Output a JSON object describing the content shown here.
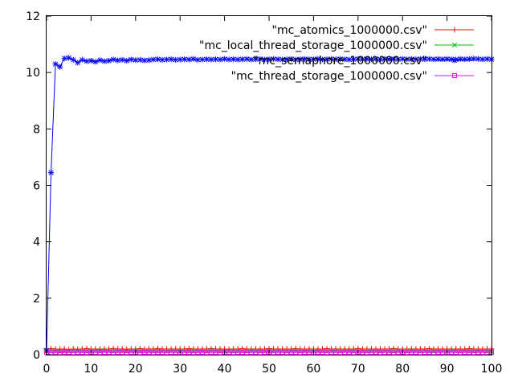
{
  "chart_data": {
    "type": "line",
    "xlim": [
      0,
      100
    ],
    "ylim": [
      0,
      12
    ],
    "xticks": [
      "0",
      "10",
      "20",
      "30",
      "40",
      "50",
      "60",
      "70",
      "80",
      "90",
      "100"
    ],
    "yticks": [
      "0",
      "2",
      "4",
      "6",
      "8",
      "10",
      "12"
    ],
    "legend_position": "top-right",
    "grid": false,
    "x": [
      0,
      1,
      2,
      3,
      4,
      5,
      6,
      7,
      8,
      9,
      10,
      11,
      12,
      13,
      14,
      15,
      16,
      17,
      18,
      19,
      20,
      21,
      22,
      23,
      24,
      25,
      26,
      27,
      28,
      29,
      30,
      31,
      32,
      33,
      34,
      35,
      36,
      37,
      38,
      39,
      40,
      41,
      42,
      43,
      44,
      45,
      46,
      47,
      48,
      49,
      50,
      51,
      52,
      53,
      54,
      55,
      56,
      57,
      58,
      59,
      60,
      61,
      62,
      63,
      64,
      65,
      66,
      67,
      68,
      69,
      70,
      71,
      72,
      73,
      74,
      75,
      76,
      77,
      78,
      79,
      80,
      81,
      82,
      83,
      84,
      85,
      86,
      87,
      88,
      89,
      90,
      91,
      92,
      93,
      94,
      95,
      96,
      97,
      98,
      99,
      100
    ],
    "series": [
      {
        "name": "\"mc_atomics_1000000.csv\"",
        "color": "#ff0000",
        "marker": "plus",
        "values": [
          0.2,
          0.21,
          0.2,
          0.19,
          0.2,
          0.18,
          0.2,
          0.19,
          0.2,
          0.21,
          0.2,
          0.2,
          0.19,
          0.2,
          0.2,
          0.21,
          0.2,
          0.2,
          0.19,
          0.2,
          0.2,
          0.21,
          0.2,
          0.2,
          0.2,
          0.21,
          0.2,
          0.2,
          0.2,
          0.2,
          0.2,
          0.2,
          0.21,
          0.2,
          0.2,
          0.2,
          0.2,
          0.21,
          0.2,
          0.2,
          0.2,
          0.19,
          0.2,
          0.2,
          0.21,
          0.2,
          0.2,
          0.2,
          0.2,
          0.2,
          0.21,
          0.2,
          0.2,
          0.2,
          0.2,
          0.2,
          0.21,
          0.2,
          0.2,
          0.2,
          0.2,
          0.2,
          0.2,
          0.21,
          0.2,
          0.2,
          0.2,
          0.2,
          0.2,
          0.2,
          0.21,
          0.2,
          0.2,
          0.2,
          0.2,
          0.2,
          0.2,
          0.2,
          0.21,
          0.2,
          0.2,
          0.2,
          0.2,
          0.2,
          0.2,
          0.2,
          0.21,
          0.2,
          0.2,
          0.2,
          0.2,
          0.2,
          0.2,
          0.2,
          0.2,
          0.21,
          0.2,
          0.2,
          0.2,
          0.2,
          0.2
        ]
      },
      {
        "name": "\"mc_local_thread_storage_1000000.csv\"",
        "color": "#00c000",
        "marker": "cross",
        "values": [
          0.12,
          0.13,
          0.12,
          0.12,
          0.11,
          0.12,
          0.12,
          0.13,
          0.12,
          0.12,
          0.12,
          0.12,
          0.12,
          0.13,
          0.12,
          0.12,
          0.12,
          0.12,
          0.12,
          0.12,
          0.13,
          0.12,
          0.12,
          0.12,
          0.12,
          0.12,
          0.12,
          0.12,
          0.13,
          0.12,
          0.12,
          0.12,
          0.12,
          0.12,
          0.12,
          0.12,
          0.12,
          0.13,
          0.12,
          0.12,
          0.12,
          0.12,
          0.12,
          0.12,
          0.12,
          0.12,
          0.13,
          0.12,
          0.12,
          0.12,
          0.12,
          0.12,
          0.12,
          0.12,
          0.12,
          0.12,
          0.13,
          0.12,
          0.12,
          0.12,
          0.12,
          0.12,
          0.12,
          0.12,
          0.12,
          0.12,
          0.12,
          0.13,
          0.12,
          0.12,
          0.12,
          0.12,
          0.12,
          0.12,
          0.12,
          0.12,
          0.12,
          0.12,
          0.12,
          0.13,
          0.12,
          0.12,
          0.12,
          0.12,
          0.12,
          0.12,
          0.12,
          0.12,
          0.12,
          0.12,
          0.12,
          0.12,
          0.12,
          0.12,
          0.13,
          0.12,
          0.12,
          0.12,
          0.12,
          0.12,
          0.12
        ]
      },
      {
        "name": "\"mc_semaphore_1000000.csv\"",
        "color": "#0000ff",
        "marker": "star",
        "values": [
          0.15,
          6.45,
          10.3,
          10.2,
          10.5,
          10.52,
          10.45,
          10.35,
          10.45,
          10.4,
          10.42,
          10.38,
          10.44,
          10.4,
          10.42,
          10.46,
          10.43,
          10.45,
          10.42,
          10.46,
          10.44,
          10.45,
          10.43,
          10.44,
          10.46,
          10.47,
          10.45,
          10.46,
          10.47,
          10.45,
          10.46,
          10.47,
          10.46,
          10.48,
          10.45,
          10.46,
          10.47,
          10.46,
          10.47,
          10.46,
          10.48,
          10.46,
          10.47,
          10.46,
          10.47,
          10.48,
          10.46,
          10.47,
          10.48,
          10.46,
          10.47,
          10.48,
          10.47,
          10.46,
          10.47,
          10.48,
          10.46,
          10.47,
          10.48,
          10.47,
          10.47,
          10.48,
          10.46,
          10.47,
          10.48,
          10.47,
          10.48,
          10.47,
          10.46,
          10.47,
          10.48,
          10.47,
          10.48,
          10.47,
          10.48,
          10.47,
          10.48,
          10.47,
          10.48,
          10.47,
          10.48,
          10.47,
          10.48,
          10.47,
          10.48,
          10.47,
          10.48,
          10.47,
          10.48,
          10.47,
          10.48,
          10.47,
          10.46,
          10.48,
          10.47,
          10.48,
          10.49,
          10.48,
          10.47,
          10.48,
          10.47
        ]
      },
      {
        "name": "\"mc_thread_storage_1000000.csv\"",
        "color": "#ff00ff",
        "marker": "square",
        "values": [
          0.08,
          0.07,
          0.08,
          0.07,
          0.08,
          0.08,
          0.07,
          0.08,
          0.08,
          0.07,
          0.08,
          0.08,
          0.07,
          0.08,
          0.08,
          0.07,
          0.08,
          0.08,
          0.07,
          0.08,
          0.08,
          0.07,
          0.08,
          0.08,
          0.07,
          0.08,
          0.08,
          0.07,
          0.08,
          0.08,
          0.07,
          0.08,
          0.08,
          0.07,
          0.08,
          0.08,
          0.07,
          0.08,
          0.08,
          0.07,
          0.08,
          0.08,
          0.07,
          0.08,
          0.08,
          0.07,
          0.08,
          0.08,
          0.07,
          0.08,
          0.08,
          0.07,
          0.08,
          0.08,
          0.07,
          0.08,
          0.08,
          0.07,
          0.08,
          0.08,
          0.07,
          0.08,
          0.08,
          0.07,
          0.08,
          0.08,
          0.07,
          0.08,
          0.08,
          0.07,
          0.08,
          0.08,
          0.07,
          0.08,
          0.08,
          0.07,
          0.08,
          0.08,
          0.07,
          0.08,
          0.08,
          0.07,
          0.08,
          0.08,
          0.07,
          0.08,
          0.08,
          0.07,
          0.08,
          0.08,
          0.07,
          0.08,
          0.08,
          0.07,
          0.08,
          0.08,
          0.07,
          0.08,
          0.08,
          0.07,
          0.08
        ]
      }
    ]
  }
}
